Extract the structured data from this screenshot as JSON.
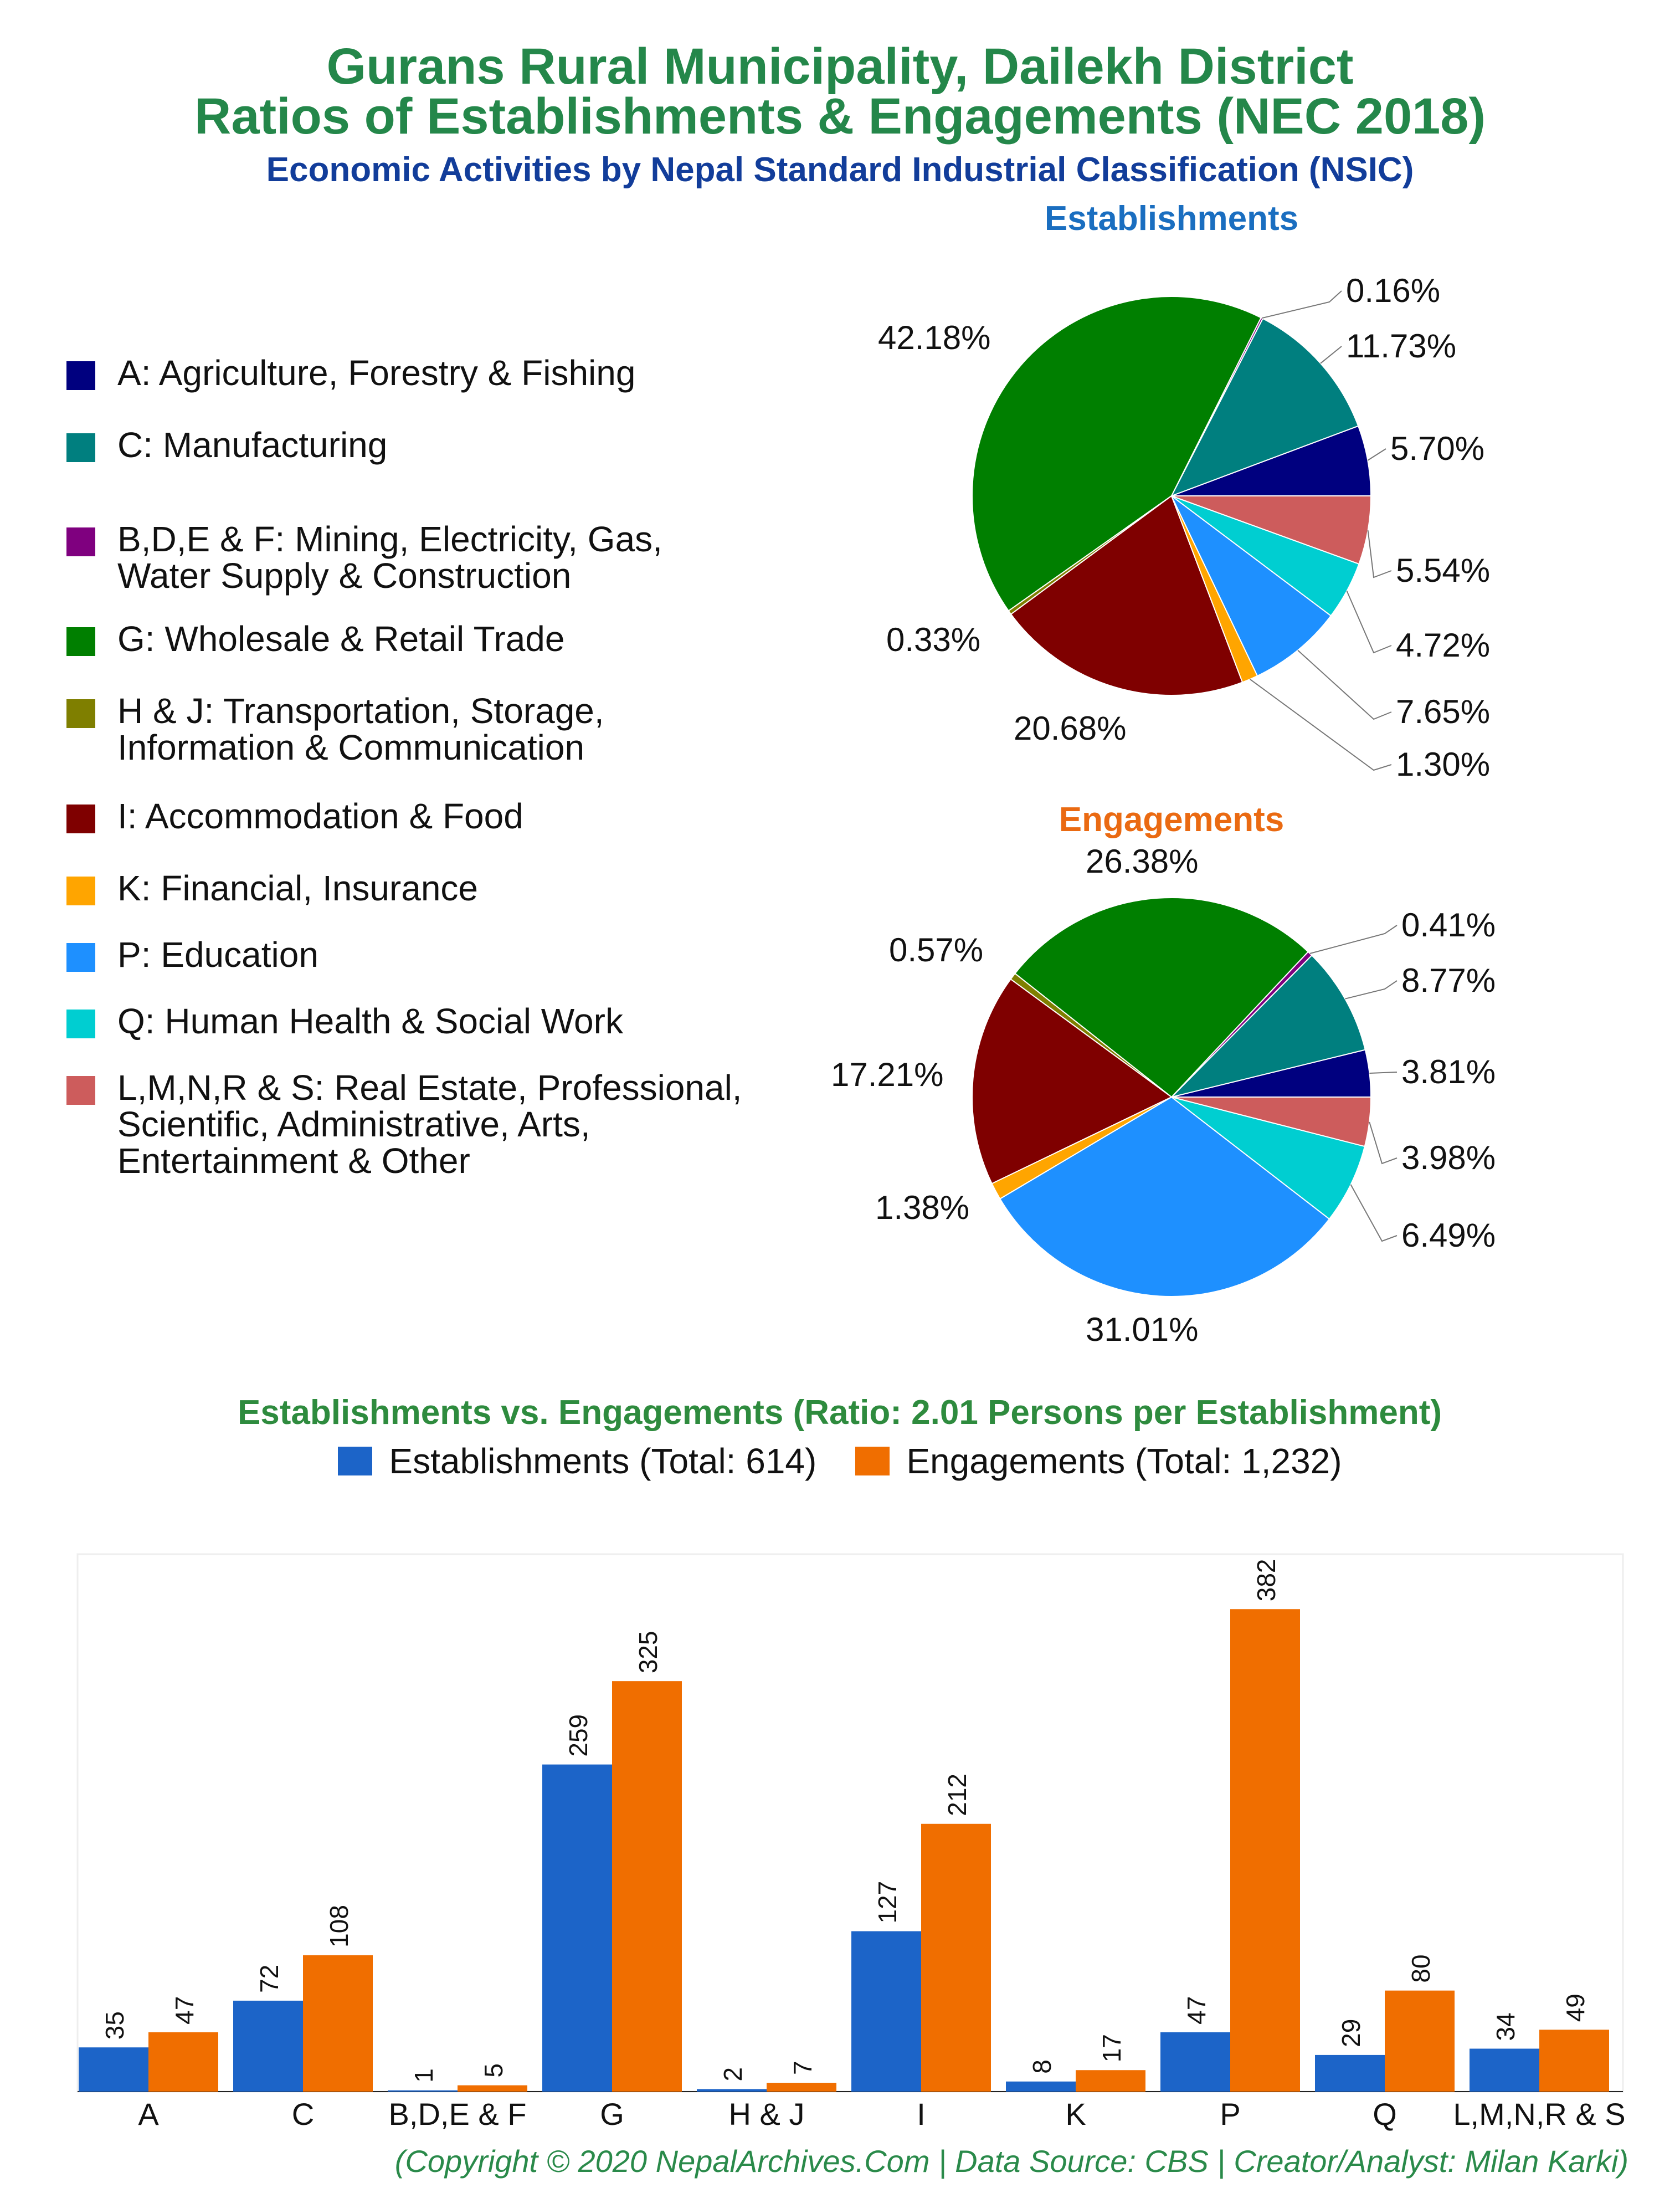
{
  "header": {
    "title_line1": "Gurans Rural Municipality, Dailekh District",
    "title_line2": "Ratios of Establishments & Engagements (NEC 2018)",
    "subtitle": "Economic Activities by Nepal Standard Industrial Classification (NSIC)"
  },
  "colors": {
    "A": "#00007f",
    "C": "#007f7f",
    "BDEF": "#7f007f",
    "G": "#007f00",
    "HJ": "#7f7f00",
    "I": "#7f0000",
    "K": "#ffa500",
    "P": "#1e90ff",
    "Q": "#00ced1",
    "LMNRS": "#cd5c5c",
    "est_bar": "#1c64c8",
    "eng_bar": "#f06e00",
    "est_title": "#1a6ec0",
    "eng_title": "#ea6a12",
    "bar_title": "#2e8b3e"
  },
  "legend": {
    "items": [
      {
        "key": "A",
        "label": "A: Agriculture, Forestry & Fishing"
      },
      {
        "key": "C",
        "label": "C: Manufacturing"
      },
      {
        "key": "BDEF",
        "label": "B,D,E & F: Mining, Electricity, Gas,\nWater Supply & Construction"
      },
      {
        "key": "G",
        "label": "G: Wholesale & Retail Trade"
      },
      {
        "key": "HJ",
        "label": "H & J: Transportation, Storage,\nInformation & Communication"
      },
      {
        "key": "I",
        "label": "I: Accommodation & Food"
      },
      {
        "key": "K",
        "label": "K: Financial, Insurance"
      },
      {
        "key": "P",
        "label": "P: Education"
      },
      {
        "key": "Q",
        "label": "Q: Human Health & Social Work"
      },
      {
        "key": "LMNRS",
        "label": "L,M,N,R & S: Real Estate, Professional,\nScientific, Administrative, Arts,\nEntertainment & Other"
      }
    ]
  },
  "chart_data": [
    {
      "type": "pie",
      "title": "Establishments",
      "slices": [
        {
          "key": "A",
          "value": 5.7,
          "label": "5.70%"
        },
        {
          "key": "C",
          "value": 11.73,
          "label": "11.73%"
        },
        {
          "key": "BDEF",
          "value": 0.16,
          "label": "0.16%"
        },
        {
          "key": "G",
          "value": 42.18,
          "label": "42.18%"
        },
        {
          "key": "HJ",
          "value": 0.33,
          "label": "0.33%"
        },
        {
          "key": "I",
          "value": 20.68,
          "label": "20.68%"
        },
        {
          "key": "K",
          "value": 1.3,
          "label": "1.30%"
        },
        {
          "key": "P",
          "value": 7.65,
          "label": "7.65%"
        },
        {
          "key": "Q",
          "value": 4.72,
          "label": "4.72%"
        },
        {
          "key": "LMNRS",
          "value": 5.54,
          "label": "5.54%"
        }
      ]
    },
    {
      "type": "pie",
      "title": "Engagements",
      "slices": [
        {
          "key": "A",
          "value": 3.81,
          "label": "3.81%"
        },
        {
          "key": "C",
          "value": 8.77,
          "label": "8.77%"
        },
        {
          "key": "BDEF",
          "value": 0.41,
          "label": "0.41%"
        },
        {
          "key": "G",
          "value": 26.38,
          "label": "26.38%"
        },
        {
          "key": "HJ",
          "value": 0.57,
          "label": "0.57%"
        },
        {
          "key": "I",
          "value": 17.21,
          "label": "17.21%"
        },
        {
          "key": "K",
          "value": 1.38,
          "label": "1.38%"
        },
        {
          "key": "P",
          "value": 31.01,
          "label": "31.01%"
        },
        {
          "key": "Q",
          "value": 6.49,
          "label": "6.49%"
        },
        {
          "key": "LMNRS",
          "value": 3.98,
          "label": "3.98%"
        }
      ]
    },
    {
      "type": "bar",
      "title": "Establishments vs. Engagements (Ratio: 2.01 Persons per Establishment)",
      "categories": [
        "A",
        "C",
        "B,D,E & F",
        "G",
        "H & J",
        "I",
        "K",
        "P",
        "Q",
        "L,M,N,R & S"
      ],
      "series": [
        {
          "name": "Establishments (Total: 614)",
          "values": [
            35,
            72,
            1,
            259,
            2,
            127,
            8,
            47,
            29,
            34
          ]
        },
        {
          "name": "Engagements (Total: 1,232)",
          "values": [
            47,
            108,
            5,
            325,
            7,
            212,
            17,
            382,
            80,
            49
          ]
        }
      ],
      "ylim": [
        0,
        400
      ]
    }
  ],
  "footer": {
    "copyright": "(Copyright © 2020 NepalArchives.Com | Data Source: CBS | Creator/Analyst: Milan Karki)"
  }
}
